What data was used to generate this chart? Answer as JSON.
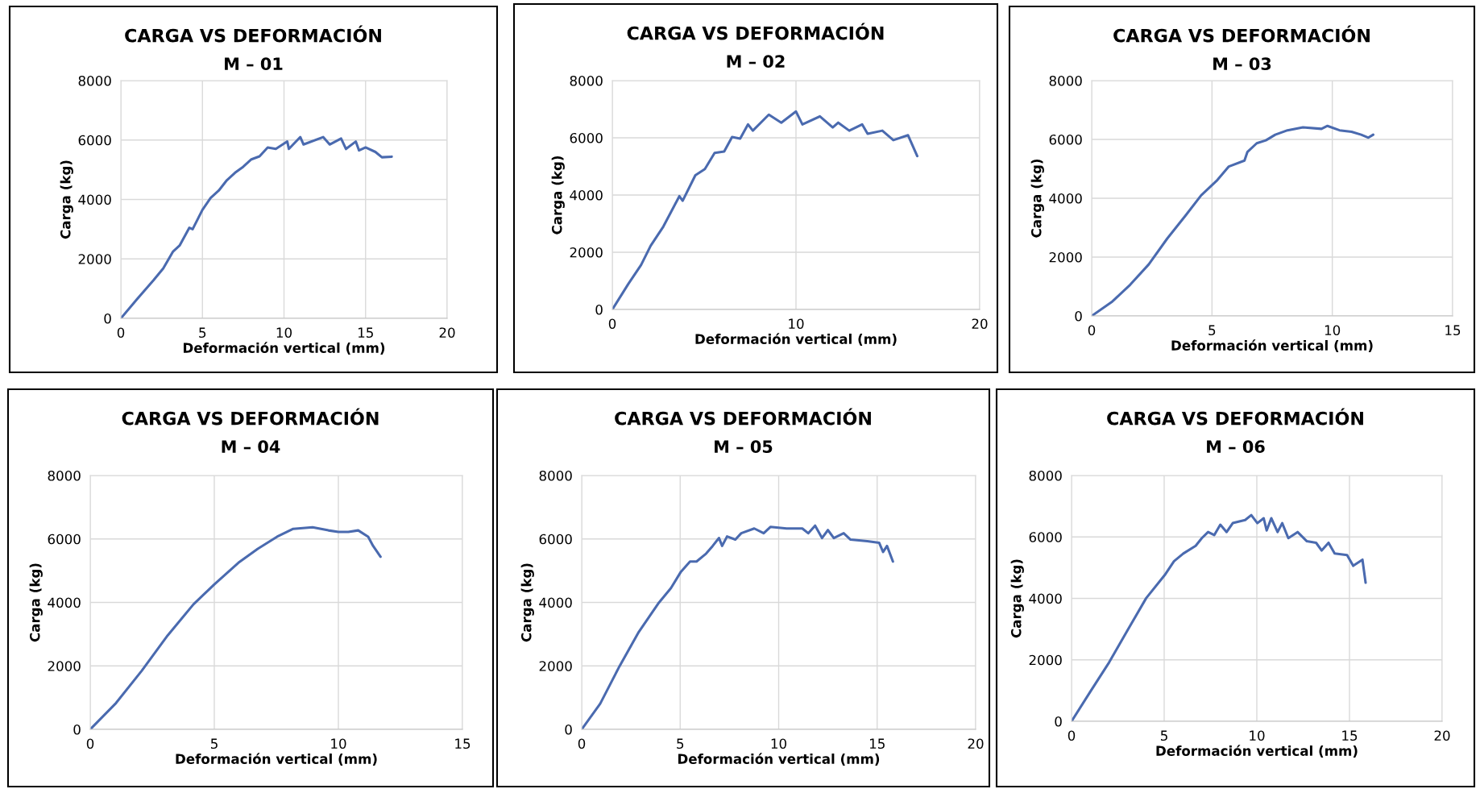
{
  "chart_data": [
    {
      "type": "line",
      "title": "CARGA VS DEFORMACIÓN",
      "subtitle": "M – 01",
      "xlabel": "Deformación vertical (mm)",
      "ylabel": "Carga (kg)",
      "color": "#4a6aaf",
      "grid": true,
      "xlim": [
        0,
        20
      ],
      "xticks": [
        0,
        5,
        10,
        15,
        20
      ],
      "ylim": [
        0,
        8000
      ],
      "yticks": [
        0,
        2000,
        4000,
        6000,
        8000
      ],
      "x": [
        0,
        1,
        2,
        2.6,
        3.2,
        3.6,
        4.2,
        4.4,
        5,
        5.5,
        6,
        6.5,
        7,
        7.5,
        8,
        8.5,
        9,
        9.5,
        10.2,
        10.3,
        11,
        11.2,
        12.4,
        12.8,
        13.5,
        13.8,
        14.4,
        14.6,
        15,
        15.6,
        16,
        16.6
      ],
      "values": [
        0,
        650,
        1280,
        1680,
        2250,
        2450,
        3050,
        3000,
        3650,
        4050,
        4300,
        4650,
        4900,
        5100,
        5350,
        5450,
        5750,
        5700,
        5950,
        5700,
        6100,
        5850,
        6100,
        5850,
        6050,
        5700,
        5950,
        5650,
        5750,
        5600,
        5420,
        5440
      ]
    },
    {
      "type": "line",
      "title": "CARGA VS DEFORMACIÓN",
      "subtitle": "M – 02",
      "xlabel": "Deformación vertical (mm)",
      "ylabel": "Carga (kg)",
      "color": "#4a6aaf",
      "grid": true,
      "xlim": [
        0,
        20
      ],
      "xticks": [
        0,
        10,
        20
      ],
      "ylim": [
        0,
        8000
      ],
      "yticks": [
        0,
        2000,
        4000,
        6000,
        8000
      ],
      "x": [
        0,
        0.87,
        1.57,
        2.09,
        2.78,
        3.65,
        3.83,
        4.52,
        5.04,
        5.57,
        6.09,
        6.52,
        6.96,
        7.39,
        7.65,
        8.52,
        9.2,
        10,
        10.35,
        11.3,
        12,
        12.3,
        12.9,
        13.6,
        13.9,
        14.7,
        15.3,
        16.1,
        16.6
      ],
      "values": [
        0,
        890,
        1560,
        2230,
        2900,
        3960,
        3800,
        4690,
        4910,
        5470,
        5520,
        6030,
        5970,
        6470,
        6250,
        6810,
        6530,
        6920,
        6470,
        6750,
        6360,
        6530,
        6250,
        6470,
        6140,
        6250,
        5920,
        6090,
        5360
      ]
    },
    {
      "type": "line",
      "title": "CARGA VS DEFORMACIÓN",
      "subtitle": "M – 03",
      "xlabel": "Deformación vertical (mm)",
      "ylabel": "Carga (kg)",
      "color": "#4a6aaf",
      "grid": true,
      "xlim": [
        0,
        15
      ],
      "xticks": [
        0,
        5,
        10,
        15
      ],
      "ylim": [
        0,
        8000
      ],
      "yticks": [
        0,
        2000,
        4000,
        6000,
        8000
      ],
      "x": [
        0,
        0.83,
        1.6,
        2.37,
        3.14,
        3.9,
        4.55,
        5.19,
        5.7,
        6.35,
        6.47,
        6.86,
        7.24,
        7.63,
        8.14,
        8.78,
        9.55,
        9.8,
        10.3,
        10.8,
        11.2,
        11.5,
        11.7
      ],
      "values": [
        0,
        470,
        1060,
        1750,
        2630,
        3410,
        4100,
        4590,
        5080,
        5280,
        5570,
        5870,
        5970,
        6160,
        6310,
        6410,
        6360,
        6460,
        6310,
        6260,
        6160,
        6060,
        6160
      ]
    },
    {
      "type": "line",
      "title": "CARGA VS DEFORMACIÓN",
      "subtitle": "M – 04",
      "xlabel": "Deformación vertical (mm)",
      "ylabel": "Carga (kg)",
      "color": "#4a6aaf",
      "grid": true,
      "xlim": [
        0,
        15
      ],
      "xticks": [
        0,
        5,
        10,
        15
      ],
      "ylim": [
        0,
        8000
      ],
      "yticks": [
        0,
        2000,
        4000,
        6000,
        8000
      ],
      "x": [
        0,
        1.04,
        2.08,
        3.12,
        4.16,
        5,
        5.97,
        6.75,
        7.53,
        8.18,
        8.96,
        9.6,
        10,
        10.4,
        10.8,
        11.2,
        11.4,
        11.7
      ],
      "values": [
        0,
        830,
        1850,
        2960,
        3940,
        4570,
        5250,
        5690,
        6070,
        6320,
        6370,
        6270,
        6220,
        6220,
        6270,
        6070,
        5780,
        5440
      ]
    },
    {
      "type": "line",
      "title": "CARGA VS DEFORMACIÓN",
      "subtitle": "M – 05",
      "xlabel": "Deformación vertical (mm)",
      "ylabel": "Carga (kg)",
      "color": "#4a6aaf",
      "grid": true,
      "xlim": [
        0,
        20
      ],
      "xticks": [
        0,
        5,
        10,
        15,
        20
      ],
      "ylim": [
        0,
        8000
      ],
      "yticks": [
        0,
        2000,
        4000,
        6000,
        8000
      ],
      "x": [
        0,
        0.94,
        1.92,
        2.9,
        3.88,
        4.53,
        5.02,
        5.5,
        5.83,
        6.32,
        6.65,
        6.97,
        7.13,
        7.38,
        7.8,
        8.1,
        8.76,
        9.24,
        9.58,
        10.4,
        11.2,
        11.5,
        11.85,
        12.2,
        12.5,
        12.8,
        13.3,
        13.65,
        14.5,
        15.1,
        15.3,
        15.5,
        15.8
      ],
      "values": [
        0,
        810,
        1990,
        3070,
        3960,
        4450,
        4950,
        5290,
        5290,
        5540,
        5780,
        6030,
        5780,
        6080,
        5980,
        6180,
        6330,
        6180,
        6380,
        6330,
        6330,
        6180,
        6420,
        6030,
        6280,
        6030,
        6180,
        5980,
        5930,
        5880,
        5590,
        5780,
        5290
      ]
    },
    {
      "type": "line",
      "title": "CARGA VS DEFORMACIÓN",
      "subtitle": "M – 06",
      "xlabel": "Deformación vertical (mm)",
      "ylabel": "Carga (kg)",
      "color": "#4a6aaf",
      "grid": true,
      "xlim": [
        0,
        20
      ],
      "xticks": [
        0,
        5,
        10,
        15,
        20
      ],
      "ylim": [
        0,
        8000
      ],
      "yticks": [
        0,
        2000,
        4000,
        6000,
        8000
      ],
      "x": [
        0,
        1.03,
        2.03,
        3.03,
        4.03,
        5.03,
        5.53,
        6.03,
        6.7,
        7.03,
        7.37,
        7.7,
        8.03,
        8.37,
        8.7,
        9.37,
        9.7,
        10.03,
        10.37,
        10.53,
        10.78,
        11.12,
        11.37,
        11.7,
        12.2,
        12.7,
        13.2,
        13.5,
        13.87,
        14.2,
        14.87,
        15.2,
        15.7,
        15.87
      ],
      "values": [
        0,
        980,
        1920,
        2970,
        4010,
        4760,
        5210,
        5460,
        5710,
        5960,
        6160,
        6060,
        6400,
        6160,
        6450,
        6550,
        6710,
        6450,
        6610,
        6210,
        6610,
        6160,
        6450,
        5960,
        6160,
        5860,
        5810,
        5560,
        5810,
        5460,
        5410,
        5060,
        5260,
        4510
      ]
    }
  ]
}
